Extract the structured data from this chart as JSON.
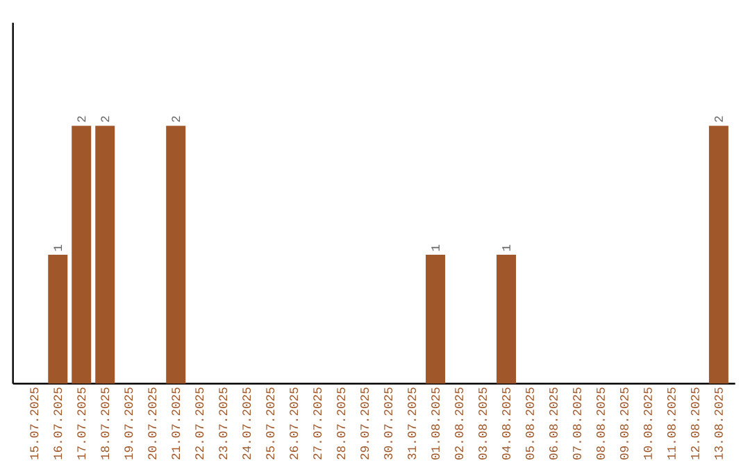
{
  "chart_data": {
    "type": "bar",
    "categories": [
      "15.07.2025",
      "16.07.2025",
      "17.07.2025",
      "18.07.2025",
      "19.07.2025",
      "20.07.2025",
      "21.07.2025",
      "22.07.2025",
      "23.07.2025",
      "24.07.2025",
      "25.07.2025",
      "26.07.2025",
      "27.07.2025",
      "28.07.2025",
      "29.07.2025",
      "30.07.2025",
      "31.07.2025",
      "01.08.2025",
      "02.08.2025",
      "03.08.2025",
      "04.08.2025",
      "05.08.2025",
      "06.08.2025",
      "07.08.2025",
      "08.08.2025",
      "09.08.2025",
      "10.08.2025",
      "11.08.2025",
      "12.08.2025",
      "13.08.2025"
    ],
    "values": [
      0,
      1,
      2,
      2,
      0,
      0,
      2,
      0,
      0,
      0,
      0,
      0,
      0,
      0,
      0,
      0,
      0,
      1,
      0,
      0,
      1,
      0,
      0,
      0,
      0,
      0,
      0,
      0,
      0,
      2
    ],
    "value_labels": [
      null,
      "1",
      "2",
      "2",
      null,
      null,
      "2",
      null,
      null,
      null,
      null,
      null,
      null,
      null,
      null,
      null,
      null,
      "1",
      null,
      null,
      "1",
      null,
      null,
      null,
      null,
      null,
      null,
      null,
      null,
      "2"
    ],
    "color": "#a0582a"
  }
}
